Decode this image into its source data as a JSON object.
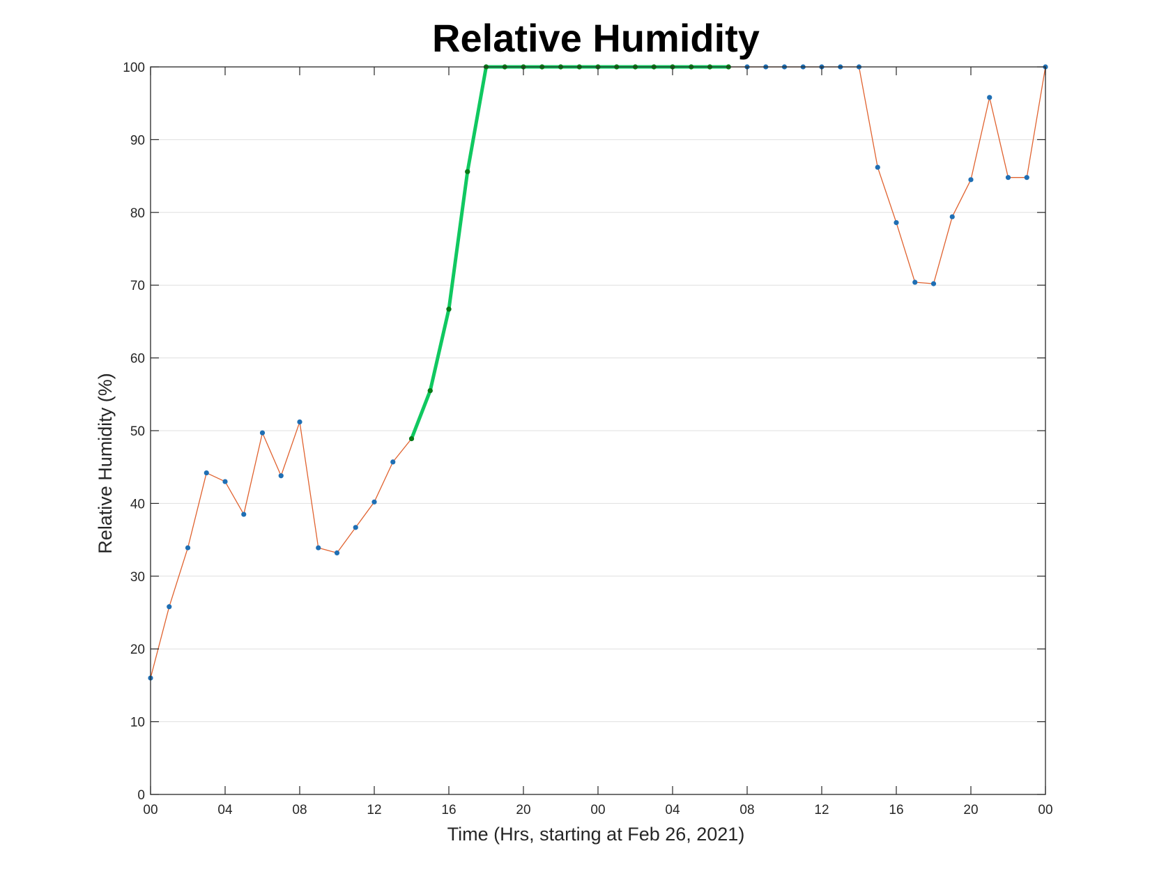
{
  "chart_data": {
    "type": "line",
    "title": "Relative Humidity",
    "xlabel": "Time (Hrs, starting at Feb 26, 2021)",
    "ylabel": "Relative Humidity (%)",
    "xlim": [
      0,
      48
    ],
    "ylim": [
      0,
      100
    ],
    "grid": "horizontal",
    "x_ticks": [
      {
        "x": 0,
        "label": "00"
      },
      {
        "x": 4,
        "label": "04"
      },
      {
        "x": 8,
        "label": "08"
      },
      {
        "x": 12,
        "label": "12"
      },
      {
        "x": 16,
        "label": "16"
      },
      {
        "x": 20,
        "label": "20"
      },
      {
        "x": 24,
        "label": "00"
      },
      {
        "x": 28,
        "label": "04"
      },
      {
        "x": 32,
        "label": "08"
      },
      {
        "x": 36,
        "label": "12"
      },
      {
        "x": 40,
        "label": "16"
      },
      {
        "x": 44,
        "label": "20"
      },
      {
        "x": 48,
        "label": "00"
      }
    ],
    "y_ticks": [
      0,
      10,
      20,
      30,
      40,
      50,
      60,
      70,
      80,
      90,
      100
    ],
    "series": [
      {
        "color": "#e0622f",
        "marker_color": "#1f6fb4",
        "x": [
          0,
          1,
          2,
          3,
          4,
          5,
          6,
          7,
          8,
          9,
          10,
          11,
          12,
          13,
          14,
          15,
          16,
          17,
          18,
          19,
          20,
          21,
          22,
          23,
          24,
          25,
          26,
          27,
          28,
          29,
          30,
          31,
          32,
          33,
          34,
          35,
          36,
          37,
          38,
          39,
          40,
          41,
          42,
          43,
          44,
          45,
          46,
          47,
          48
        ],
        "values": [
          16.0,
          25.8,
          33.9,
          44.2,
          43.0,
          38.5,
          49.7,
          43.8,
          51.2,
          33.9,
          33.2,
          36.7,
          40.2,
          45.7,
          48.9,
          55.5,
          66.7,
          85.6,
          100,
          100,
          100,
          100,
          100,
          100,
          100,
          100,
          100,
          100,
          100,
          100,
          100,
          100,
          100,
          100,
          100,
          100,
          100,
          100,
          100,
          86.2,
          78.6,
          70.4,
          70.2,
          79.4,
          84.5,
          95.8,
          84.8,
          84.8,
          100
        ]
      },
      {
        "color": "#10c860",
        "marker_color": "#0a7a14",
        "x": [
          14,
          15,
          16,
          17,
          18,
          19,
          20,
          21,
          22,
          23,
          24,
          25,
          26,
          27,
          28,
          29,
          30,
          31
        ],
        "values": [
          48.9,
          55.5,
          66.7,
          85.6,
          100,
          100,
          100,
          100,
          100,
          100,
          100,
          100,
          100,
          100,
          100,
          100,
          100,
          100
        ]
      }
    ]
  }
}
